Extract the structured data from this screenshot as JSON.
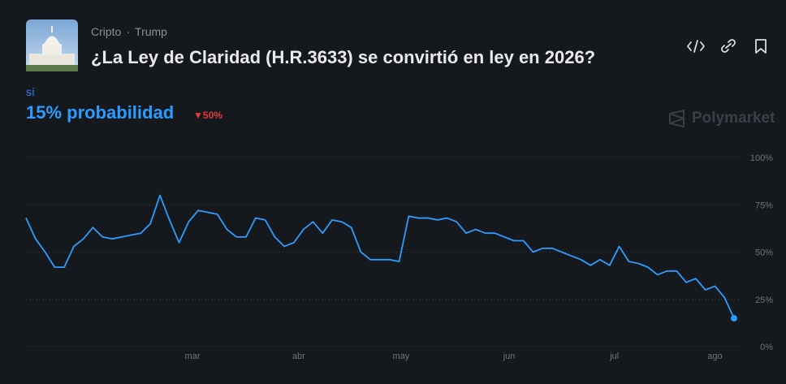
{
  "header": {
    "breadcrumb": [
      "Cripto",
      "Trump"
    ],
    "title": "¿La Ley de Claridad (H.R.3633) se convirtió en ley en 2026?",
    "outcome": "sí",
    "probability": "15% probabilidad",
    "change": "50%",
    "brand": "Polymarket"
  },
  "chart_data": {
    "type": "line",
    "series": [
      {
        "name": "sí",
        "color": "#2d9cff",
        "values": [
          68,
          57,
          50,
          42,
          42,
          53,
          57,
          63,
          58,
          57,
          58,
          59,
          60,
          65,
          80,
          67,
          55,
          66,
          72,
          71,
          70,
          62,
          58,
          58,
          68,
          67,
          58,
          53,
          55,
          62,
          66,
          60,
          67,
          66,
          63,
          50,
          46,
          46,
          46,
          45,
          69,
          68,
          68,
          67,
          68,
          66,
          60,
          62,
          60,
          60,
          58,
          56,
          56,
          50,
          52,
          52,
          50,
          48,
          46,
          43,
          46,
          43,
          53,
          45,
          44,
          42,
          38,
          40,
          40,
          34,
          36,
          30,
          32,
          26,
          15
        ]
      }
    ],
    "xlim": [
      0,
      74
    ],
    "xticks": [
      {
        "value": 17.4,
        "label": "mar"
      },
      {
        "value": 28.5,
        "label": "abr"
      },
      {
        "value": 39.2,
        "label": "may"
      },
      {
        "value": 50.5,
        "label": "jun"
      },
      {
        "value": 61.5,
        "label": "jul"
      },
      {
        "value": 72,
        "label": "ago"
      }
    ],
    "ylim": [
      0,
      100
    ],
    "yticks": [
      {
        "value": 100,
        "label": "100%"
      },
      {
        "value": 75,
        "label": "75%"
      },
      {
        "value": 50,
        "label": "50%"
      },
      {
        "value": 25,
        "label": "25%"
      },
      {
        "value": 0,
        "label": "0%"
      }
    ],
    "grid": true
  }
}
